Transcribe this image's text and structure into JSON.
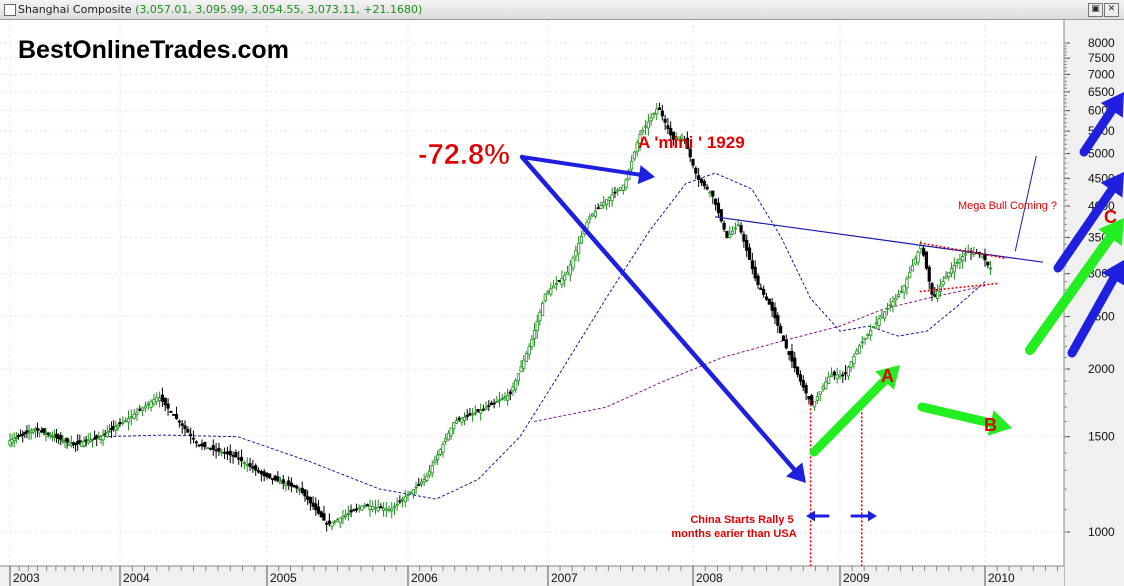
{
  "window": {
    "symbol": "Shanghai Composite",
    "quote": "(3,057.01, 3,095.99, 3,054.55, 3,073.11, +21.1680)",
    "restore_icon": "restore-icon",
    "close_icon": "close-icon"
  },
  "chart_data": {
    "type": "candlestick",
    "title": "Shanghai Composite",
    "y_axis": {
      "labels": [
        "8000",
        "7500",
        "7000",
        "6500",
        "6000",
        "5500",
        "5000",
        "4500",
        "4000",
        "3500",
        "3000",
        "2500",
        "2000",
        "1500",
        "1000"
      ],
      "log": true,
      "position": "right"
    },
    "x_axis": {
      "labels": [
        "2003",
        "2004",
        "2005",
        "2006",
        "2007",
        "2008",
        "2009",
        "2010"
      ]
    },
    "price_path": [
      {
        "t": 2003.0,
        "v": 1470
      },
      {
        "t": 2003.25,
        "v": 1550
      },
      {
        "t": 2003.6,
        "v": 1450
      },
      {
        "t": 2003.85,
        "v": 1500
      },
      {
        "t": 2004.05,
        "v": 1600
      },
      {
        "t": 2004.28,
        "v": 1780
      },
      {
        "t": 2004.55,
        "v": 1450
      },
      {
        "t": 2004.8,
        "v": 1380
      },
      {
        "t": 2005.0,
        "v": 1270
      },
      {
        "t": 2005.25,
        "v": 1200
      },
      {
        "t": 2005.45,
        "v": 1030
      },
      {
        "t": 2005.7,
        "v": 1120
      },
      {
        "t": 2005.9,
        "v": 1100
      },
      {
        "t": 2006.15,
        "v": 1260
      },
      {
        "t": 2006.35,
        "v": 1600
      },
      {
        "t": 2006.55,
        "v": 1680
      },
      {
        "t": 2006.75,
        "v": 1800
      },
      {
        "t": 2006.9,
        "v": 2250
      },
      {
        "t": 2007.0,
        "v": 2750
      },
      {
        "t": 2007.15,
        "v": 3000
      },
      {
        "t": 2007.3,
        "v": 3800
      },
      {
        "t": 2007.42,
        "v": 4100
      },
      {
        "t": 2007.55,
        "v": 4400
      },
      {
        "t": 2007.65,
        "v": 5400
      },
      {
        "t": 2007.78,
        "v": 6100
      },
      {
        "t": 2007.88,
        "v": 5300
      },
      {
        "t": 2007.95,
        "v": 5400
      },
      {
        "t": 2008.05,
        "v": 4500
      },
      {
        "t": 2008.15,
        "v": 4200
      },
      {
        "t": 2008.25,
        "v": 3500
      },
      {
        "t": 2008.33,
        "v": 3700
      },
      {
        "t": 2008.45,
        "v": 2900
      },
      {
        "t": 2008.55,
        "v": 2600
      },
      {
        "t": 2008.65,
        "v": 2200
      },
      {
        "t": 2008.75,
        "v": 1900
      },
      {
        "t": 2008.83,
        "v": 1710
      },
      {
        "t": 2008.95,
        "v": 1950
      },
      {
        "t": 2009.05,
        "v": 1950
      },
      {
        "t": 2009.15,
        "v": 2200
      },
      {
        "t": 2009.3,
        "v": 2500
      },
      {
        "t": 2009.45,
        "v": 2800
      },
      {
        "t": 2009.58,
        "v": 3400
      },
      {
        "t": 2009.66,
        "v": 2700
      },
      {
        "t": 2009.78,
        "v": 3050
      },
      {
        "t": 2009.9,
        "v": 3300
      },
      {
        "t": 2010.0,
        "v": 3250
      },
      {
        "t": 2010.05,
        "v": 3073
      }
    ],
    "moving_averages": [
      {
        "name": "",
        "color": "#1a1aa0",
        "points": [
          {
            "t": 2003.8,
            "v": 1500
          },
          {
            "t": 2004.3,
            "v": 1510
          },
          {
            "t": 2004.8,
            "v": 1500
          },
          {
            "t": 2005.3,
            "v": 1350
          },
          {
            "t": 2005.8,
            "v": 1200
          },
          {
            "t": 2006.2,
            "v": 1150
          },
          {
            "t": 2006.5,
            "v": 1250
          },
          {
            "t": 2006.8,
            "v": 1500
          },
          {
            "t": 2007.1,
            "v": 2000
          },
          {
            "t": 2007.4,
            "v": 2700
          },
          {
            "t": 2007.7,
            "v": 3600
          },
          {
            "t": 2007.95,
            "v": 4400
          },
          {
            "t": 2008.15,
            "v": 4600
          },
          {
            "t": 2008.4,
            "v": 4300
          },
          {
            "t": 2008.6,
            "v": 3500
          },
          {
            "t": 2008.8,
            "v": 2700
          },
          {
            "t": 2009.0,
            "v": 2350
          },
          {
            "t": 2009.2,
            "v": 2400
          },
          {
            "t": 2009.4,
            "v": 2300
          },
          {
            "t": 2009.6,
            "v": 2350
          },
          {
            "t": 2009.8,
            "v": 2600
          },
          {
            "t": 2010.0,
            "v": 2900
          }
        ]
      },
      {
        "name": "",
        "color": "#8a1a8a",
        "points": [
          {
            "t": 2006.9,
            "v": 1600
          },
          {
            "t": 2007.4,
            "v": 1700
          },
          {
            "t": 2007.8,
            "v": 1900
          },
          {
            "t": 2008.2,
            "v": 2100
          },
          {
            "t": 2008.6,
            "v": 2250
          },
          {
            "t": 2009.0,
            "v": 2400
          },
          {
            "t": 2009.3,
            "v": 2580
          },
          {
            "t": 2009.6,
            "v": 2700
          },
          {
            "t": 2010.0,
            "v": 2850
          }
        ]
      }
    ],
    "trendline": {
      "from": {
        "t": 2008.15,
        "v": 3820
      },
      "to": {
        "t": 2010.4,
        "v": 3150
      }
    },
    "resistance_line": {
      "from": {
        "t": 2009.55,
        "v": 3420
      },
      "to": {
        "t": 2010.15,
        "v": 3200
      }
    },
    "support_line": {
      "from": {
        "t": 2009.55,
        "v": 2780
      },
      "to": {
        "t": 2010.1,
        "v": 2880
      }
    },
    "vertical_markers": [
      2008.8,
      2009.15
    ],
    "annotations": {
      "watermark": "BestOnlineTrades.com",
      "drop_pct": "-72.8%",
      "mini_1929": "A 'mini ' 1929",
      "mega_bull": "Mega Bull Coming ?",
      "china_rally_1": "China Starts Rally 5",
      "china_rally_2": "months earier than USA",
      "label_a": "A",
      "label_b": "B",
      "label_c": "C"
    },
    "colors": {
      "up": "#1a8f1a",
      "down": "#000000",
      "annotation_red": "#e00000",
      "arrow_blue": "#1f1fe0",
      "arrow_green": "#22ee22"
    }
  }
}
